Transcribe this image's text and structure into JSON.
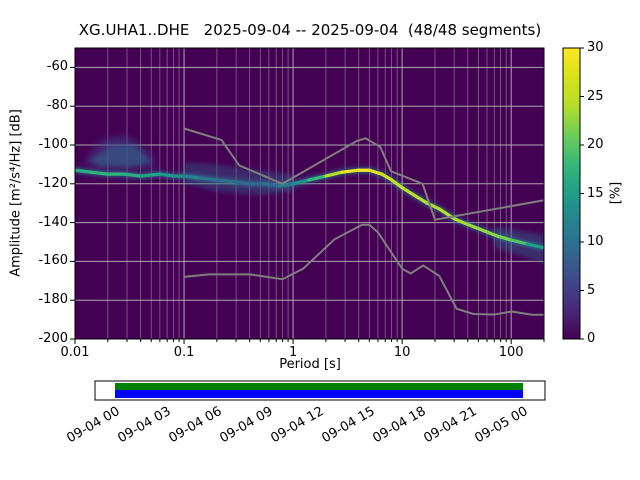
{
  "chart_data": {
    "type": "heatmap",
    "title": "XG.UHA1..DHE   2025-09-04 -- 2025-09-04  (48/48 segments)",
    "station": "XG.UHA1..DHE",
    "date_range": "2025-09-04 -- 2025-09-04",
    "segments": "48/48 segments",
    "xlabel": "Period [s]",
    "ylabel": "Amplitude [m²/s⁴/Hz] [dB]",
    "x_scale": "log",
    "xlim": [
      0.01,
      200
    ],
    "ylim": [
      -200,
      -50
    ],
    "x_ticks": [
      {
        "label": "0.01",
        "value": 0.01
      },
      {
        "label": "0.1",
        "value": 0.1
      },
      {
        "label": "1",
        "value": 1
      },
      {
        "label": "10",
        "value": 10
      },
      {
        "label": "100",
        "value": 100
      }
    ],
    "y_ticks": [
      -60,
      -80,
      -100,
      -120,
      -140,
      -160,
      -180,
      -200
    ],
    "background_color": "#440154",
    "grid_color": "#b8b8b8",
    "frame_color": "#000000",
    "colorbar": {
      "label": "[%]",
      "min": 0,
      "max": 30,
      "ticks": [
        0,
        5,
        10,
        15,
        20,
        25,
        30
      ],
      "colormap": "viridis",
      "stops": [
        [
          0.0,
          "#440154"
        ],
        [
          0.1,
          "#482878"
        ],
        [
          0.2,
          "#3e4989"
        ],
        [
          0.3,
          "#31688e"
        ],
        [
          0.4,
          "#26828e"
        ],
        [
          0.5,
          "#1f9e89"
        ],
        [
          0.6,
          "#35b779"
        ],
        [
          0.7,
          "#6dcd59"
        ],
        [
          0.8,
          "#b4de2c"
        ],
        [
          0.9,
          "#d8e219"
        ],
        [
          1.0,
          "#fde725"
        ]
      ]
    },
    "psd_mode_curve": {
      "units": [
        "period_s",
        "amplitude_db",
        "probability_percent"
      ],
      "points": [
        [
          0.01,
          -113,
          16
        ],
        [
          0.014,
          -114,
          17
        ],
        [
          0.02,
          -115,
          18
        ],
        [
          0.028,
          -115,
          17
        ],
        [
          0.04,
          -116,
          16
        ],
        [
          0.06,
          -115,
          15
        ],
        [
          0.08,
          -116,
          14
        ],
        [
          0.1,
          -116,
          13
        ],
        [
          0.14,
          -117,
          11
        ],
        [
          0.2,
          -118,
          10
        ],
        [
          0.28,
          -119,
          9
        ],
        [
          0.4,
          -120,
          9
        ],
        [
          0.55,
          -120,
          9
        ],
        [
          0.75,
          -121,
          10
        ],
        [
          1,
          -120,
          12
        ],
        [
          1.4,
          -118,
          15
        ],
        [
          2,
          -116,
          21
        ],
        [
          2.8,
          -114,
          27
        ],
        [
          4,
          -113,
          30
        ],
        [
          5,
          -113,
          29
        ],
        [
          6.5,
          -115,
          27
        ],
        [
          8,
          -118,
          26
        ],
        [
          10,
          -122,
          25
        ],
        [
          13,
          -126,
          25
        ],
        [
          17,
          -130,
          24
        ],
        [
          22,
          -133,
          24
        ],
        [
          30,
          -138,
          24
        ],
        [
          40,
          -141,
          23
        ],
        [
          55,
          -144,
          23
        ],
        [
          75,
          -147,
          22
        ],
        [
          100,
          -149,
          21
        ],
        [
          140,
          -151,
          18
        ],
        [
          200,
          -153,
          12
        ]
      ]
    },
    "noise_models": {
      "color": "#7f7f7f",
      "nhnm": [
        [
          0.1,
          -91.5
        ],
        [
          0.22,
          -97.4
        ],
        [
          0.32,
          -110.5
        ],
        [
          0.8,
          -120
        ],
        [
          3.8,
          -98.1
        ],
        [
          4.6,
          -96.5
        ],
        [
          6.3,
          -101
        ],
        [
          7.9,
          -113.5
        ],
        [
          15.4,
          -120
        ],
        [
          20,
          -138.5
        ],
        [
          200,
          -128.5
        ]
      ],
      "nlnm": [
        [
          0.1,
          -168
        ],
        [
          0.17,
          -166.7
        ],
        [
          0.4,
          -166.7
        ],
        [
          0.8,
          -169.2
        ],
        [
          1.24,
          -163.7
        ],
        [
          2.4,
          -148.6
        ],
        [
          4.3,
          -141.1
        ],
        [
          5,
          -141.1
        ],
        [
          6,
          -145
        ],
        [
          10,
          -163.8
        ],
        [
          12,
          -166.2
        ],
        [
          15.6,
          -162.1
        ],
        [
          21.9,
          -167.5
        ],
        [
          31.6,
          -184.4
        ],
        [
          45,
          -187.1
        ],
        [
          70,
          -187.4
        ],
        [
          101,
          -185.8
        ],
        [
          154,
          -187.5
        ],
        [
          200,
          -187.5
        ]
      ]
    },
    "spread_regions": [
      {
        "name": "short-period-fan",
        "color": "#3e4989",
        "opacity": 0.5,
        "blur": 3,
        "points": [
          [
            0.012,
            -108
          ],
          [
            0.018,
            -97
          ],
          [
            0.03,
            -95
          ],
          [
            0.05,
            -104
          ],
          [
            0.055,
            -112
          ],
          [
            0.03,
            -113
          ],
          [
            0.015,
            -112
          ]
        ]
      },
      {
        "name": "short-period-fan-core",
        "color": "#31688e",
        "opacity": 0.55,
        "blur": 2,
        "points": [
          [
            0.014,
            -108
          ],
          [
            0.022,
            -100
          ],
          [
            0.035,
            -100
          ],
          [
            0.05,
            -109
          ],
          [
            0.03,
            -111
          ],
          [
            0.017,
            -111
          ]
        ]
      },
      {
        "name": "mid-band",
        "color": "#31688e",
        "opacity": 0.38,
        "blur": 2,
        "points": [
          [
            0.1,
            -109
          ],
          [
            0.2,
            -110
          ],
          [
            0.5,
            -113
          ],
          [
            1.0,
            -115
          ],
          [
            1.0,
            -124
          ],
          [
            0.5,
            -126
          ],
          [
            0.2,
            -124
          ],
          [
            0.1,
            -120
          ]
        ]
      },
      {
        "name": "long-period-fan",
        "color": "#31688e",
        "opacity": 0.42,
        "blur": 2,
        "points": [
          [
            70,
            -142
          ],
          [
            200,
            -146
          ],
          [
            200,
            -161
          ],
          [
            70,
            -153
          ]
        ]
      }
    ]
  },
  "timeline": {
    "tick_labels": [
      "09-04 00",
      "09-04 03",
      "09-04 06",
      "09-04 09",
      "09-04 12",
      "09-04 15",
      "09-04 18",
      "09-04 21",
      "09-05 00"
    ],
    "data_bar_color": "#008000",
    "processed_bar_color": "#0000ff",
    "frame_color": "#000000"
  }
}
